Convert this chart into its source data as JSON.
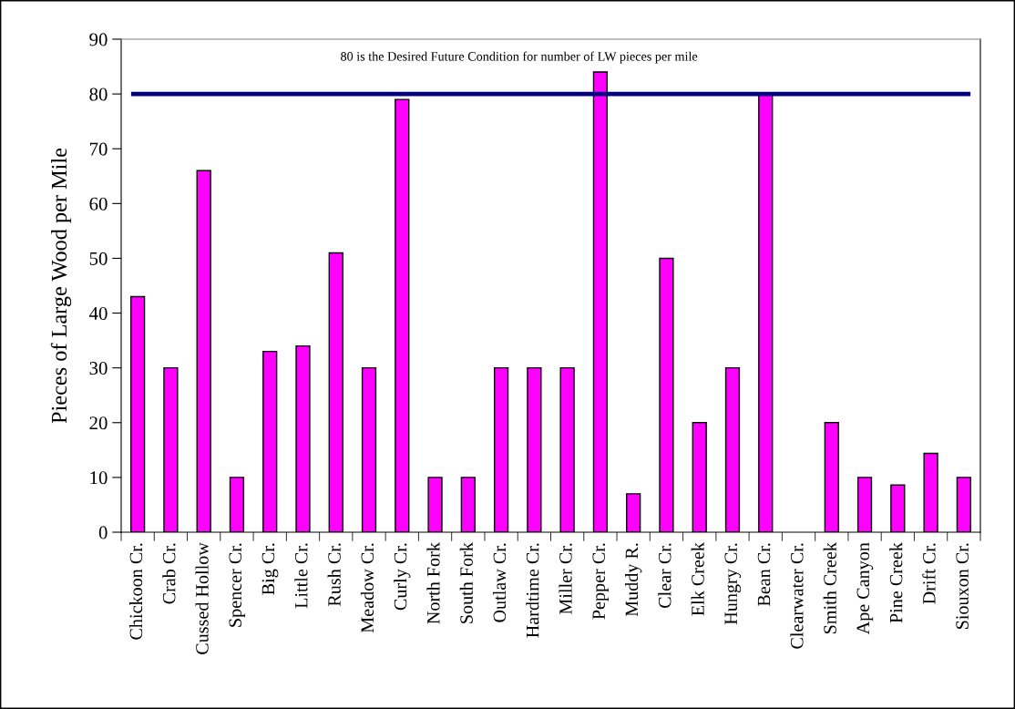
{
  "chart_data": {
    "type": "bar",
    "ylabel": "Pieces of Large Wood per Mile",
    "categories": [
      "Chickoon Cr.",
      "Crab Cr.",
      "Cussed Hollow",
      "Spencer Cr.",
      "Big Cr.",
      "Little Cr.",
      "Rush Cr.",
      "Meadow Cr.",
      "Curly Cr.",
      "North Fork",
      "South Fork",
      "Outlaw Cr.",
      "Hardtime Cr.",
      "Miller Cr.",
      "Pepper Cr.",
      "Muddy R.",
      "Clear Cr.",
      "Elk Creek",
      "Hungry Cr.",
      "Bean Cr.",
      "Clearwater Cr.",
      "Smith Creek",
      "Ape Canyon",
      "Pine Creek",
      "Drift Cr.",
      "Siouxon Cr."
    ],
    "values": [
      43,
      30,
      66,
      10,
      33,
      34,
      51,
      30,
      79,
      10,
      10,
      30,
      30,
      30,
      84,
      7,
      50,
      20,
      30,
      80,
      null,
      20,
      10,
      8.6,
      14.4,
      10
    ],
    "color": "#ff00ff",
    "ylim": [
      0,
      90
    ],
    "yticks": [
      0,
      10,
      20,
      30,
      40,
      50,
      60,
      70,
      80,
      90
    ],
    "grid": false,
    "legend": false,
    "ref_lines": [
      {
        "axis": "y",
        "value": 80,
        "label": "80 is the Desired Future Condition for number of LW pieces per mile",
        "color": "#000080",
        "line_style": "solid"
      }
    ]
  }
}
